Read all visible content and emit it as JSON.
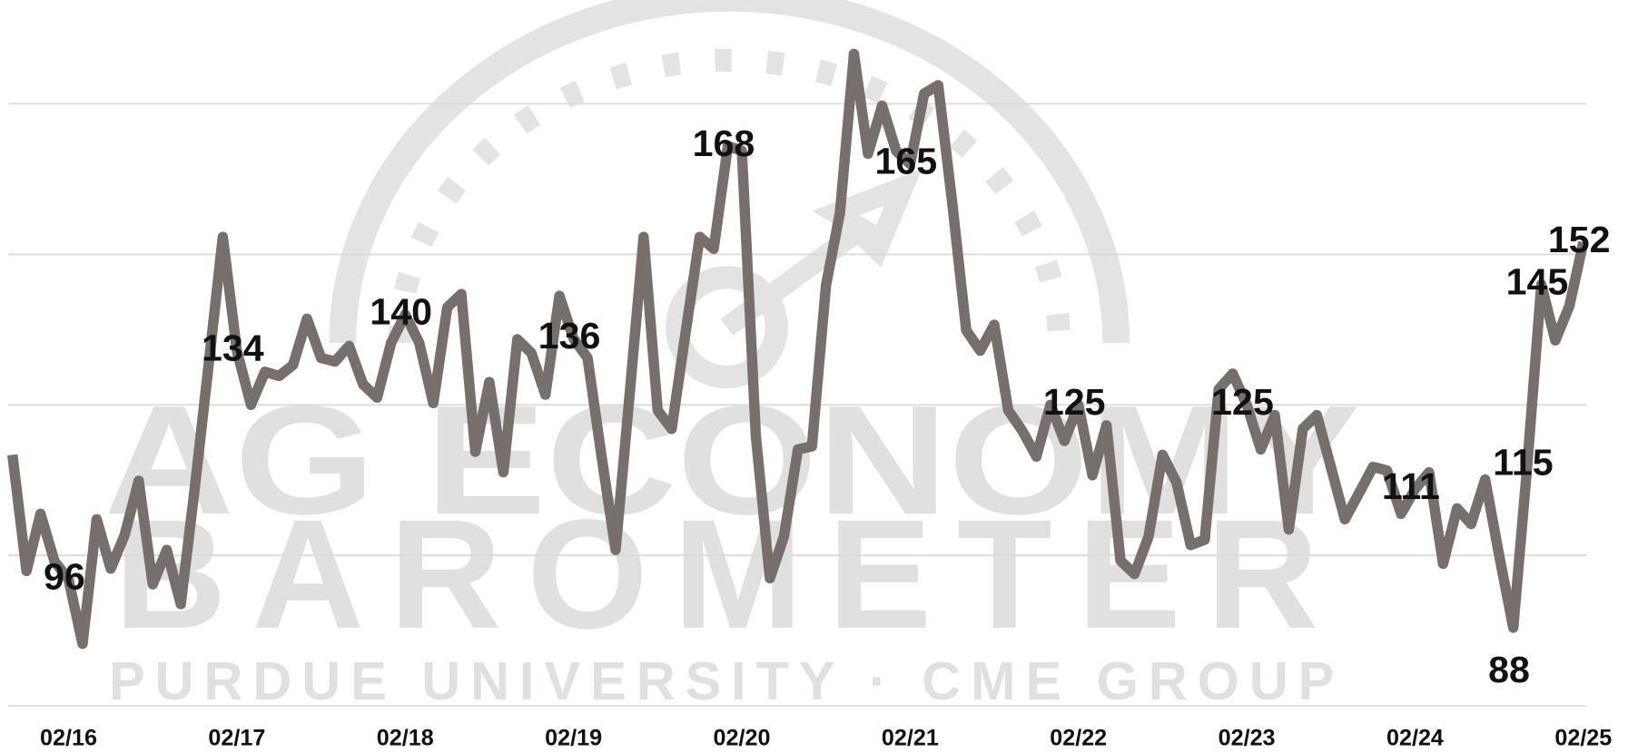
{
  "chart_data": {
    "type": "line",
    "watermark": {
      "line1": "AG ECONOMY",
      "line2": "BAROMETER",
      "line3": "PURDUE UNIVERSITY · CME GROUP"
    },
    "categories": [
      null,
      null,
      null,
      null,
      "02/16",
      null,
      null,
      null,
      null,
      null,
      null,
      null,
      null,
      null,
      null,
      null,
      "02/17",
      null,
      null,
      null,
      null,
      null,
      null,
      null,
      null,
      null,
      null,
      null,
      "02/18",
      null,
      null,
      null,
      null,
      null,
      null,
      null,
      null,
      null,
      null,
      null,
      "02/19",
      null,
      null,
      null,
      null,
      null,
      null,
      null,
      null,
      null,
      null,
      null,
      "02/20",
      null,
      null,
      null,
      null,
      null,
      null,
      null,
      null,
      null,
      null,
      null,
      "02/21",
      null,
      null,
      null,
      null,
      null,
      null,
      null,
      null,
      null,
      null,
      null,
      "02/22",
      null,
      null,
      null,
      null,
      null,
      null,
      null,
      null,
      null,
      null,
      null,
      "02/23",
      null,
      null,
      null,
      null,
      null,
      null,
      null,
      null,
      null,
      null,
      null,
      "02/24",
      null,
      null,
      null,
      null,
      null,
      null,
      null,
      null,
      null,
      null,
      null,
      "02/25"
    ],
    "series": [
      {
        "color": "#766f6b",
        "values": [
          116.7,
          97.4,
          106.9,
          99,
          96,
          85.3,
          106,
          97.8,
          103.4,
          112.4,
          95.2,
          100.9,
          91.9,
          111.2,
          131.9,
          152.9,
          134,
          125,
          130.5,
          129.8,
          131.6,
          139.3,
          132.8,
          132.2,
          134.8,
          128.4,
          126.2,
          135.3,
          140,
          135.3,
          125.3,
          141.2,
          143.4,
          117.2,
          128.8,
          113.8,
          135.9,
          133.6,
          126.7,
          143.1,
          136,
          132.8,
          116.4,
          100.9,
          126.7,
          152.9,
          124.1,
          121,
          137.1,
          152.9,
          150.9,
          168,
          167.2,
          119.8,
          96.2,
          103.1,
          117.6,
          118.1,
          144.8,
          156.9,
          183.3,
          166.7,
          174.7,
          167.2,
          165,
          176.7,
          178.1,
          158.6,
          137.4,
          134,
          138.3,
          124.1,
          120.7,
          116.4,
          125,
          119,
          125,
          113.3,
          121.6,
          99.1,
          96.9,
          103.1,
          116.7,
          112.1,
          101.7,
          102.6,
          127.6,
          130.2,
          125,
          117.6,
          123.3,
          104.3,
          121,
          123.3,
          114.7,
          106,
          110.3,
          114.7,
          114.1,
          106.9,
          111,
          113.8,
          98.6,
          107.8,
          105.2,
          112.6,
          100,
          88,
          115,
          145,
          135.7,
          141.4,
          152
        ],
        "value_labels": [
          null,
          null,
          null,
          null,
          "96",
          null,
          null,
          null,
          null,
          null,
          null,
          null,
          null,
          null,
          null,
          null,
          "134",
          null,
          null,
          null,
          null,
          null,
          null,
          null,
          null,
          null,
          null,
          null,
          "140",
          null,
          null,
          null,
          null,
          null,
          null,
          null,
          null,
          null,
          null,
          null,
          "136",
          null,
          null,
          null,
          null,
          null,
          null,
          null,
          null,
          null,
          null,
          "168",
          null,
          null,
          null,
          null,
          null,
          null,
          null,
          null,
          null,
          null,
          null,
          null,
          "165",
          null,
          null,
          null,
          null,
          null,
          null,
          null,
          null,
          null,
          null,
          null,
          "125",
          null,
          null,
          null,
          null,
          null,
          null,
          null,
          null,
          null,
          null,
          null,
          "125",
          null,
          null,
          null,
          null,
          null,
          null,
          null,
          null,
          null,
          null,
          null,
          "111",
          null,
          null,
          null,
          null,
          null,
          null,
          "88",
          "115",
          "145",
          null,
          null,
          "152"
        ]
      }
    ],
    "ylim": [
      75,
      192
    ],
    "yticks": [
      75,
      100,
      125,
      150,
      175
    ],
    "grid": true
  }
}
